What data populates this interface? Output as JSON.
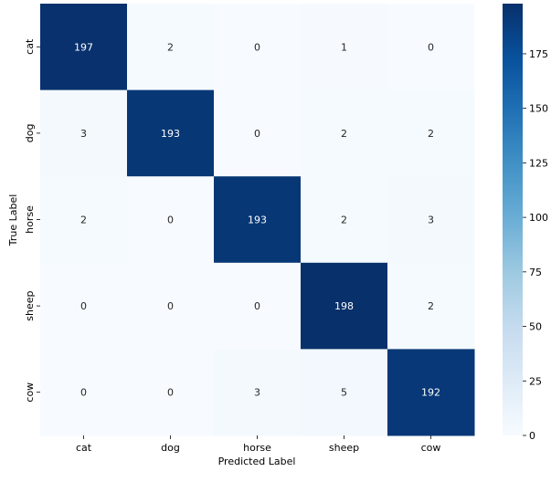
{
  "chart_data": {
    "type": "heatmap",
    "title": "",
    "xlabel": "Predicted Label",
    "ylabel": "True Label",
    "x_categories": [
      "cat",
      "dog",
      "horse",
      "sheep",
      "cow"
    ],
    "y_categories": [
      "cat",
      "dog",
      "horse",
      "sheep",
      "cow"
    ],
    "values": [
      [
        197,
        2,
        0,
        1,
        0
      ],
      [
        3,
        193,
        0,
        2,
        2
      ],
      [
        2,
        0,
        193,
        2,
        3
      ],
      [
        0,
        0,
        0,
        198,
        2
      ],
      [
        0,
        0,
        3,
        5,
        192
      ]
    ],
    "colormap": "Blues",
    "vmin": 0,
    "vmax": 198,
    "colorbar_ticks": [
      0,
      25,
      50,
      75,
      100,
      125,
      150,
      175
    ],
    "colors": {
      "low": "#f7fbff",
      "high": "#08306b",
      "text_dark": "#262626",
      "text_light": "#ffffff"
    }
  }
}
